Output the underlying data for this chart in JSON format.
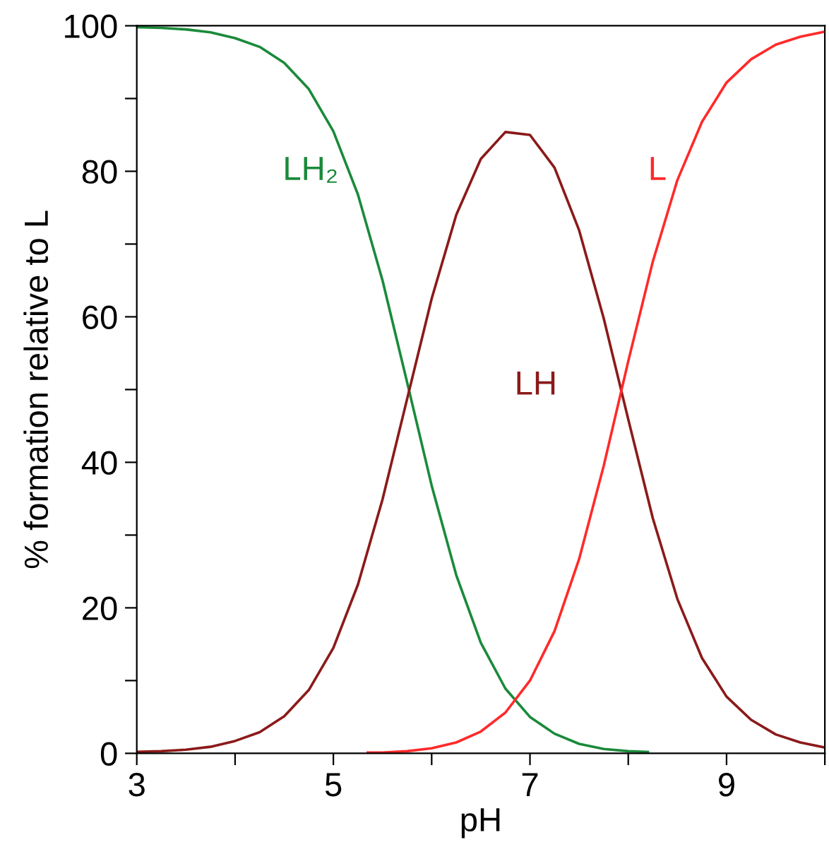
{
  "chart_data": {
    "type": "line",
    "xlabel": "pH",
    "ylabel": "% formation relative to L",
    "xlim": [
      3,
      10
    ],
    "ylim": [
      0,
      100
    ],
    "xticks": [
      3,
      {
        "value": 4,
        "label": null
      },
      5,
      {
        "value": 6,
        "label": null
      },
      7,
      {
        "value": 8,
        "label": null
      },
      9,
      {
        "value": 10,
        "label": null
      }
    ],
    "yticks": [
      0,
      {
        "value": 10,
        "label": null
      },
      20,
      {
        "value": 30,
        "label": null
      },
      40,
      {
        "value": 50,
        "label": null
      },
      60,
      {
        "value": 70,
        "label": null
      },
      80,
      {
        "value": 90,
        "label": null
      },
      100
    ],
    "grid": false,
    "legend": false,
    "marker": "none",
    "line_style": "solid",
    "series": [
      {
        "color": "#1a8a3a",
        "x": [
          3,
          3.25,
          3.5,
          3.75,
          4,
          4.25,
          4.5,
          4.75,
          5,
          5.25,
          5.5,
          5.75,
          6,
          6.25,
          6.5,
          6.75,
          7,
          7.25,
          7.5,
          7.75,
          8,
          8.2
        ],
        "values": [
          99.8,
          99.7,
          99.5,
          99.1,
          98.3,
          97.1,
          94.9,
          91.3,
          85.5,
          76.8,
          65.0,
          51.0,
          36.8,
          24.5,
          15.2,
          8.9,
          5.0,
          2.7,
          1.3,
          0.6,
          0.3,
          0.2
        ]
      },
      {
        "color": "#8b1a1a",
        "x": [
          3,
          3.25,
          3.5,
          3.75,
          4,
          4.25,
          4.5,
          4.75,
          5,
          5.25,
          5.5,
          5.75,
          6,
          6.25,
          6.5,
          6.75,
          7,
          7.25,
          7.5,
          7.75,
          8,
          8.25,
          8.5,
          8.75,
          9,
          9.25,
          9.5,
          9.75,
          10
        ],
        "values": [
          0.2,
          0.3,
          0.5,
          0.9,
          1.7,
          2.9,
          5.1,
          8.7,
          14.5,
          23.2,
          34.9,
          48.7,
          62.5,
          74.0,
          81.7,
          85.4,
          85.0,
          80.5,
          71.9,
          59.8,
          45.9,
          32.3,
          21.2,
          13.1,
          7.8,
          4.6,
          2.6,
          1.5,
          0.8
        ]
      },
      {
        "color": "#ff2a2a",
        "x": [
          5.35,
          5.5,
          5.75,
          6,
          6.25,
          6.5,
          6.75,
          7,
          7.25,
          7.5,
          7.75,
          8,
          8.25,
          8.5,
          8.75,
          9,
          9.25,
          9.5,
          9.75,
          10
        ],
        "values": [
          0.1,
          0.1,
          0.3,
          0.7,
          1.5,
          3.0,
          5.6,
          10.0,
          16.8,
          26.7,
          39.5,
          53.9,
          67.6,
          78.8,
          86.8,
          92.2,
          95.4,
          97.4,
          98.5,
          99.2
        ]
      }
    ],
    "annotations": [
      {
        "text": "LH₂",
        "x": 5.15,
        "y": 80
      },
      "LH",
      {
        "text": "L",
        "x": 8.53,
        "y": 80
      }
    ]
  }
}
